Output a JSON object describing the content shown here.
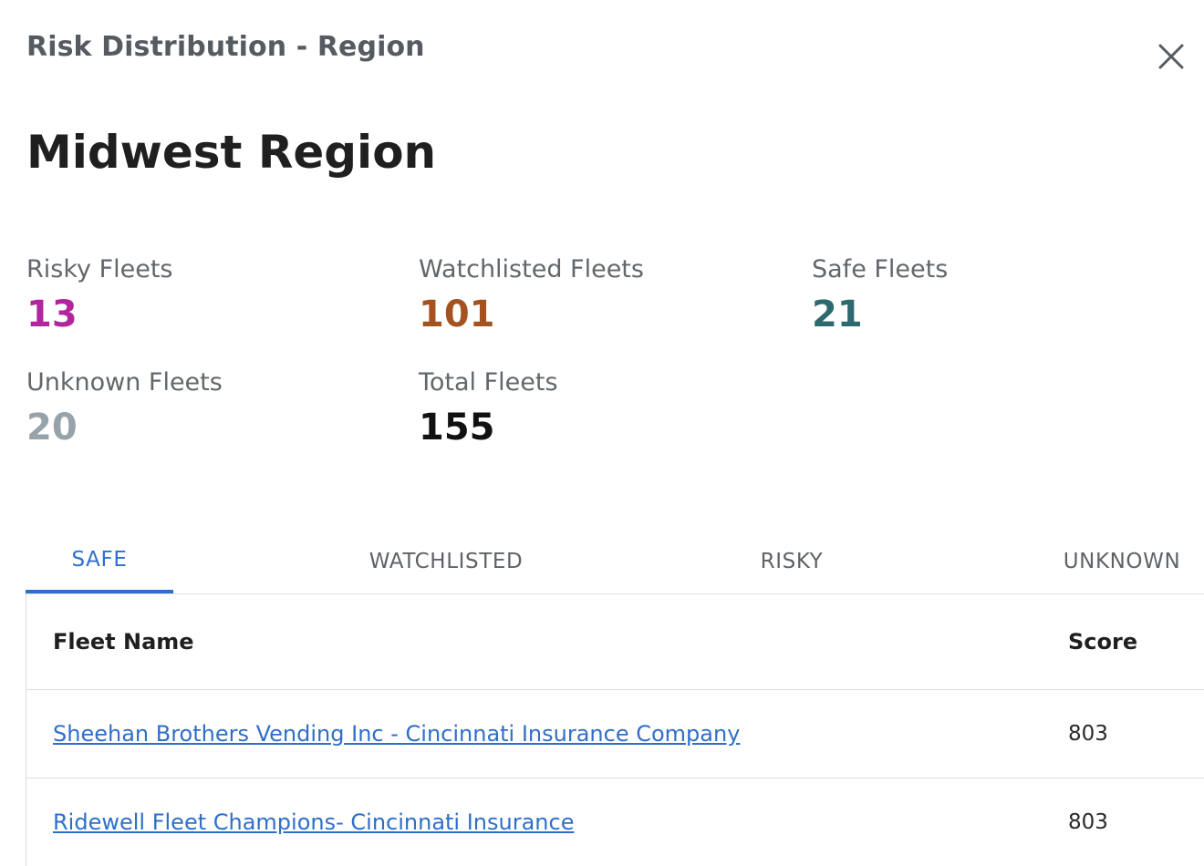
{
  "panel": {
    "title": "Risk Distribution - Region",
    "close_icon": "close-icon"
  },
  "region": {
    "name": "Midwest Region"
  },
  "stats": [
    {
      "label": "Risky Fleets",
      "value": "13",
      "color": "#b1269e"
    },
    {
      "label": "Watchlisted Fleets",
      "value": "101",
      "color": "#a4521f"
    },
    {
      "label": "Safe Fleets",
      "value": "21",
      "color": "#2f6970"
    },
    {
      "label": "Unknown Fleets",
      "value": "20",
      "color": "#97a3ab"
    },
    {
      "label": "Total Fleets",
      "value": "155",
      "color": "#111111"
    }
  ],
  "tabs": [
    {
      "label": "SAFE",
      "active": true
    },
    {
      "label": "WATCHLISTED",
      "active": false
    },
    {
      "label": "RISKY",
      "active": false
    },
    {
      "label": "UNKNOWN",
      "active": false
    }
  ],
  "table": {
    "columns": [
      "Fleet Name",
      "Score"
    ],
    "rows": [
      {
        "fleet_name": "Sheehan Brothers Vending Inc - Cincinnati Insurance Company",
        "score": "803"
      },
      {
        "fleet_name": "Ridewell Fleet Champions- Cincinnati Insurance",
        "score": "803"
      }
    ]
  },
  "colors": {
    "accent": "#2f6fc9",
    "divider": "#dddddd"
  }
}
